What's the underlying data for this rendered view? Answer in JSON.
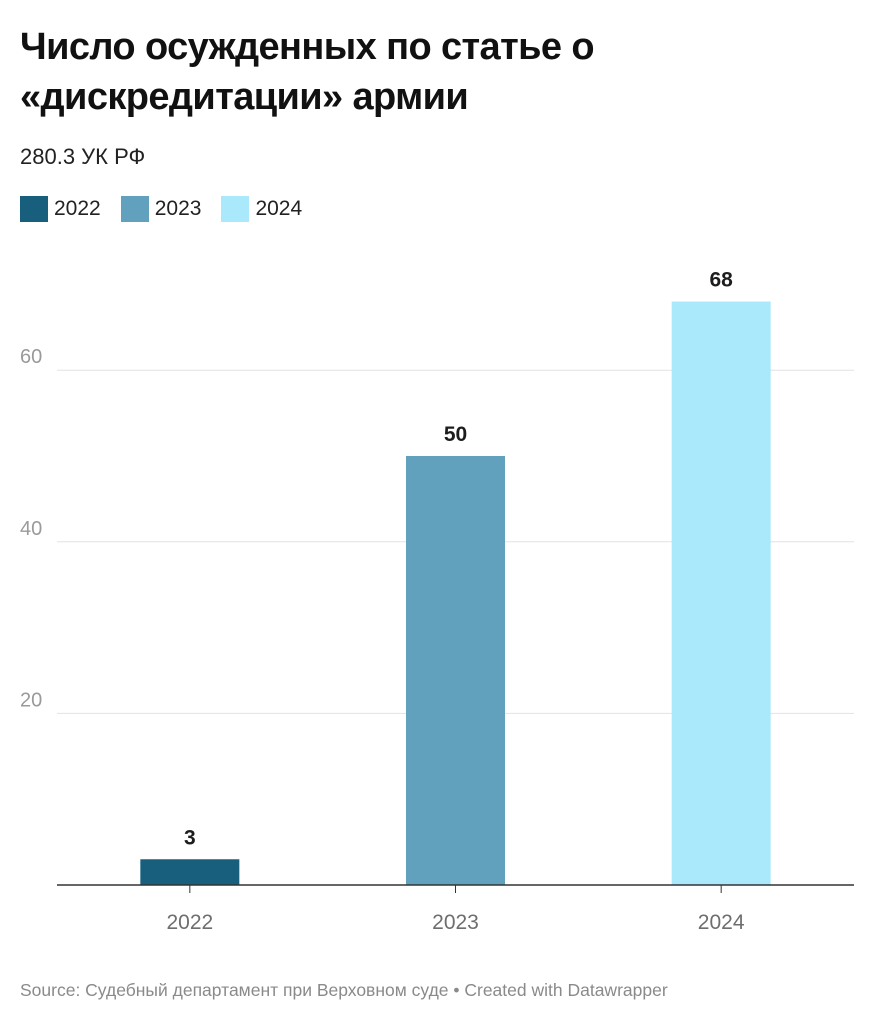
{
  "title": "Число осужденных по статье о «дискредитации» армии",
  "subtitle": "280.3 УК РФ",
  "source": "Source: Судебный департамент при Верховном суде • Created with Datawrapper",
  "chart_data": {
    "type": "bar",
    "categories": [
      "2022",
      "2023",
      "2024"
    ],
    "values": [
      3,
      50,
      68
    ],
    "colors": [
      "#175f7c",
      "#62a1be",
      "#aae8fb"
    ],
    "legend": [
      "2022",
      "2023",
      "2024"
    ],
    "y_ticks": [
      20,
      40,
      60
    ],
    "ylim": [
      0,
      70
    ],
    "grid": true,
    "legend_position": "top-left"
  }
}
